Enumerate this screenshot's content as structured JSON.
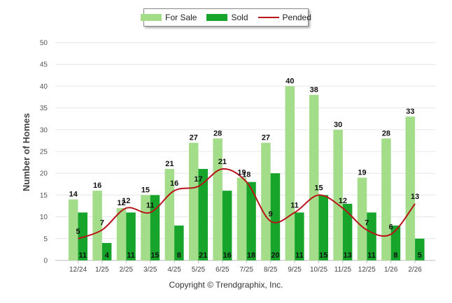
{
  "chart_data": {
    "type": "bar",
    "title": "",
    "xlabel": "",
    "ylabel": "Number of Homes",
    "ylim": [
      0,
      50
    ],
    "yticks": [
      0,
      5,
      10,
      15,
      20,
      25,
      30,
      35,
      40,
      45,
      50
    ],
    "grid": true,
    "legend_position": "top-center",
    "categories": [
      "12/24",
      "1/25",
      "2/25",
      "3/25",
      "4/25",
      "5/25",
      "6/25",
      "7/25",
      "8/25",
      "9/25",
      "10/25",
      "11/25",
      "12/25",
      "1/26",
      "2/26"
    ],
    "series": [
      {
        "name": "For Sale",
        "kind": "bar",
        "color": "#a3dd8a",
        "values": [
          14,
          16,
          12,
          15,
          21,
          27,
          28,
          19,
          27,
          40,
          38,
          30,
          19,
          28,
          33
        ]
      },
      {
        "name": "Sold",
        "kind": "bar",
        "color": "#16a52a",
        "values": [
          11,
          4,
          11,
          15,
          8,
          21,
          16,
          18,
          20,
          11,
          15,
          13,
          11,
          8,
          5
        ]
      },
      {
        "name": "Pended",
        "kind": "line",
        "color": "#b8141b",
        "values": [
          5,
          7,
          12,
          11,
          16,
          17,
          21,
          18,
          9,
          11,
          15,
          12,
          7,
          6,
          13
        ]
      }
    ],
    "footer": "Copyright © Trendgraphix, Inc."
  }
}
